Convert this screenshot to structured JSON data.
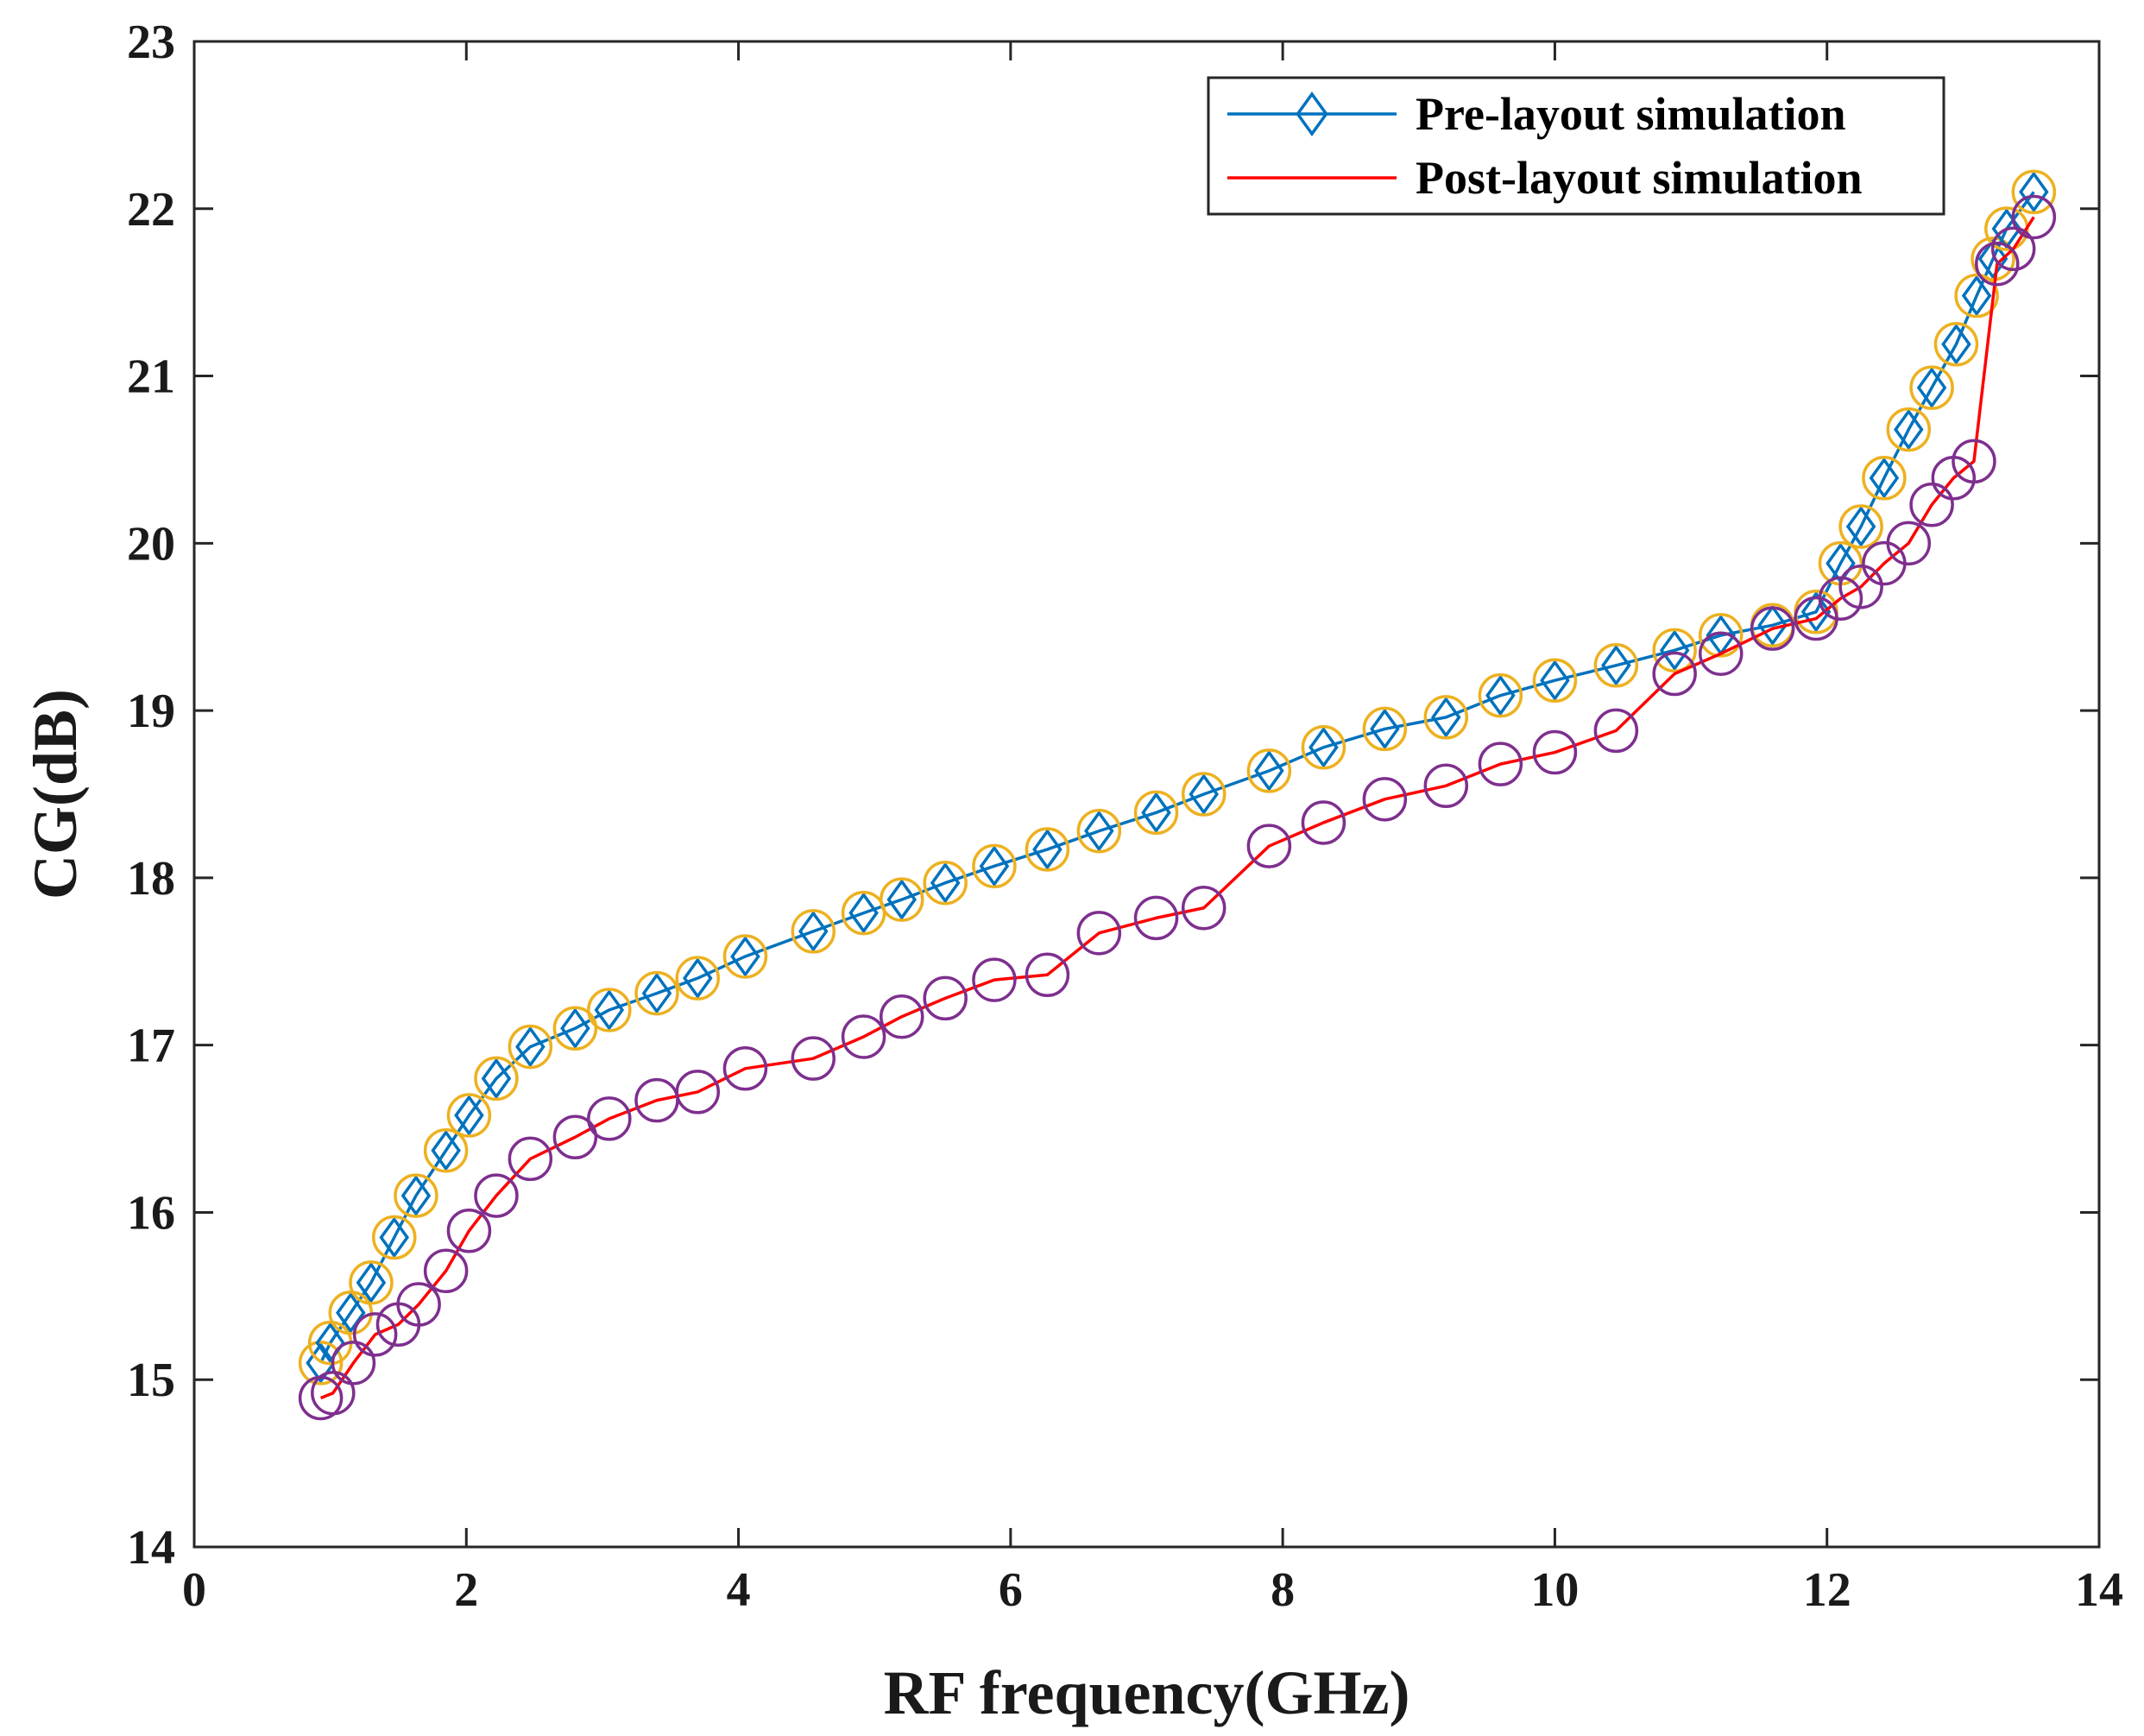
{
  "chart_data": {
    "type": "line",
    "title": "",
    "xlabel": "RF frequency(GHz)",
    "ylabel": "CG(dB)",
    "xlim": [
      0,
      14
    ],
    "ylim": [
      14,
      23
    ],
    "xticks": [
      0,
      2,
      4,
      6,
      8,
      10,
      12,
      14
    ],
    "yticks": [
      14,
      15,
      16,
      17,
      18,
      19,
      20,
      21,
      22,
      23
    ],
    "xtick_labels": [
      "0",
      "2",
      "4",
      "6",
      "8",
      "10",
      "12",
      "14"
    ],
    "ytick_labels": [
      "14",
      "15",
      "16",
      "17",
      "18",
      "19",
      "20",
      "21",
      "22",
      "23"
    ],
    "grid": false,
    "legend_position": "top-right",
    "series": [
      {
        "name": "Pre-layout simulation",
        "color": "#0072BD",
        "marker": "diamond",
        "overlay_marker": "circle",
        "overlay_color": "#EDB120",
        "x": [
          0.93,
          1.0,
          1.15,
          1.3,
          1.47,
          1.63,
          1.85,
          2.02,
          2.22,
          2.47,
          2.8,
          3.05,
          3.4,
          3.7,
          4.05,
          4.55,
          4.92,
          5.2,
          5.52,
          5.88,
          6.27,
          6.65,
          7.07,
          7.42,
          7.9,
          8.3,
          8.75,
          9.2,
          9.6,
          10.0,
          10.45,
          10.88,
          11.22,
          11.6,
          11.92,
          12.1,
          12.25,
          12.42,
          12.6,
          12.77,
          12.95,
          13.1,
          13.22,
          13.32,
          13.52
        ],
        "y": [
          15.1,
          15.22,
          15.4,
          15.58,
          15.85,
          16.1,
          16.37,
          16.58,
          16.8,
          16.99,
          17.1,
          17.21,
          17.31,
          17.4,
          17.53,
          17.68,
          17.79,
          17.87,
          17.97,
          18.07,
          18.17,
          18.28,
          18.39,
          18.5,
          18.64,
          18.78,
          18.89,
          18.96,
          19.09,
          19.18,
          19.27,
          19.36,
          19.45,
          19.51,
          19.59,
          19.88,
          20.1,
          20.39,
          20.68,
          20.93,
          21.19,
          21.48,
          21.7,
          21.88,
          22.1
        ]
      },
      {
        "name": "Post-layout simulation",
        "color": "#FF0000",
        "marker": "none",
        "overlay_marker": "circle",
        "overlay_color": "#7E2F8E",
        "x": [
          0.93,
          1.02,
          1.17,
          1.33,
          1.5,
          1.65,
          1.85,
          2.02,
          2.22,
          2.47,
          2.8,
          3.05,
          3.4,
          3.7,
          4.05,
          4.55,
          4.92,
          5.2,
          5.52,
          5.88,
          6.27,
          6.65,
          7.07,
          7.42,
          7.9,
          8.3,
          8.75,
          9.2,
          9.6,
          10.0,
          10.45,
          10.88,
          11.22,
          11.6,
          11.92,
          12.1,
          12.25,
          12.42,
          12.6,
          12.77,
          12.93,
          13.08,
          13.25,
          13.37,
          13.52
        ],
        "y": [
          14.89,
          14.92,
          15.1,
          15.27,
          15.33,
          15.45,
          15.65,
          15.89,
          16.1,
          16.32,
          16.45,
          16.56,
          16.67,
          16.72,
          16.86,
          16.92,
          17.05,
          17.17,
          17.28,
          17.39,
          17.42,
          17.67,
          17.76,
          17.82,
          18.19,
          18.33,
          18.47,
          18.55,
          18.68,
          18.75,
          18.88,
          19.22,
          19.34,
          19.49,
          19.55,
          19.67,
          19.74,
          19.88,
          20.0,
          20.23,
          20.39,
          20.49,
          21.67,
          21.76,
          21.95
        ]
      }
    ]
  }
}
